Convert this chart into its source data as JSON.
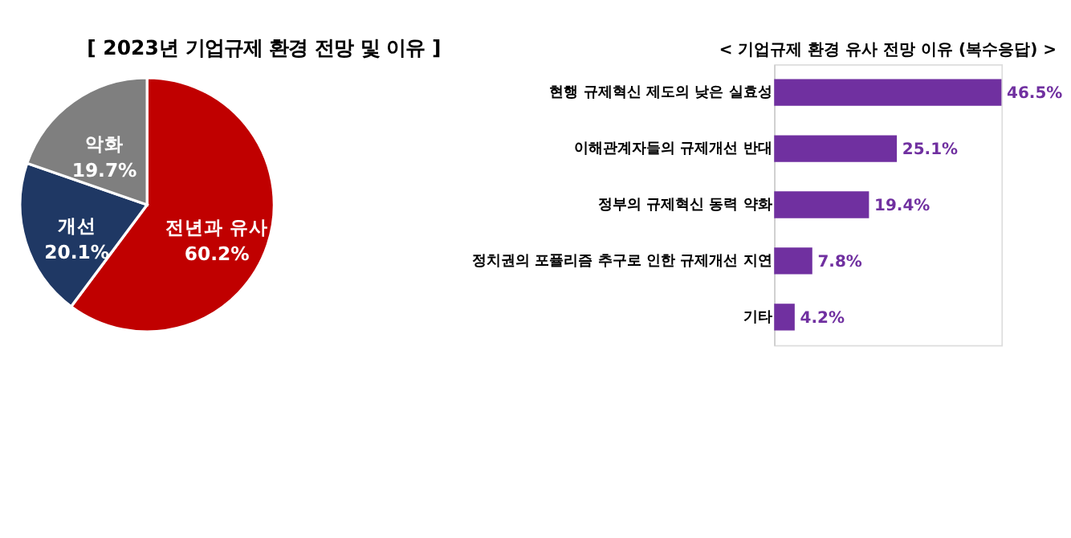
{
  "chart_data": [
    {
      "type": "pie",
      "title": "[ 2023년 기업규제 환경 전망 및 이유 ]",
      "categories": [
        "전년과 유사",
        "개선",
        "악화"
      ],
      "values": [
        60.2,
        20.1,
        19.7
      ],
      "colors": [
        "#c00000",
        "#1f3864",
        "#7f7f7f"
      ],
      "value_labels": [
        "60.2%",
        "20.1%",
        "19.7%"
      ],
      "legend": false
    },
    {
      "type": "bar",
      "orientation": "horizontal",
      "title": "< 기업규제 환경 유사 전망 이유 (복수응답) >",
      "categories": [
        "현행 규제혁신 제도의 낮은 실효성",
        "이해관계자들의 규제개선 반대",
        "정부의 규제혁신 동력 약화",
        "정치권의 포퓰리즘 추구로 인한 규제개선 지연",
        "기타"
      ],
      "values": [
        46.5,
        25.1,
        19.4,
        7.8,
        4.2
      ],
      "color": "#7030a0",
      "value_labels": [
        "46.5%",
        "25.1%",
        "19.4%",
        "7.8%",
        "4.2%"
      ],
      "grid": false
    }
  ]
}
